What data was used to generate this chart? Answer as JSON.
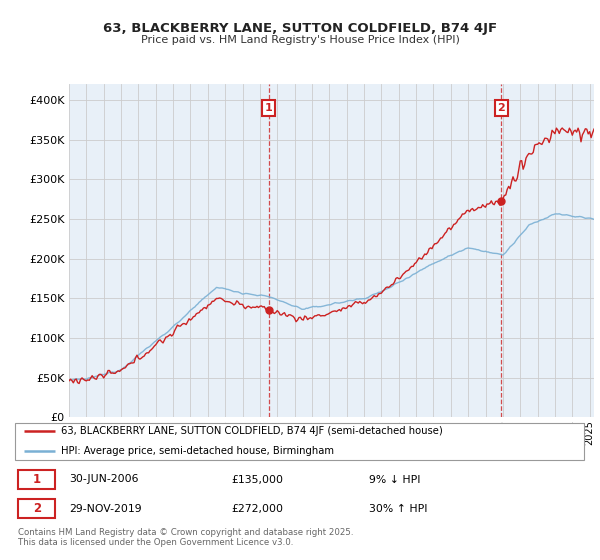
{
  "title1": "63, BLACKBERRY LANE, SUTTON COLDFIELD, B74 4JF",
  "title2": "Price paid vs. HM Land Registry's House Price Index (HPI)",
  "legend_line1": "63, BLACKBERRY LANE, SUTTON COLDFIELD, B74 4JF (semi-detached house)",
  "legend_line2": "HPI: Average price, semi-detached house, Birmingham",
  "sale1_date": "30-JUN-2006",
  "sale1_price": 135000,
  "sale1_pct": "9% ↓ HPI",
  "sale2_date": "29-NOV-2019",
  "sale2_price": 272000,
  "sale2_pct": "30% ↑ HPI",
  "copyright": "Contains HM Land Registry data © Crown copyright and database right 2025.\nThis data is licensed under the Open Government Licence v3.0.",
  "red_color": "#cc2222",
  "blue_color": "#7ab0d4",
  "grid_color": "#cccccc",
  "chart_bg": "#e8f0f8",
  "ylim_min": 0,
  "ylim_max": 420000,
  "sale1_year": 2006.5,
  "sale2_year": 2019.92
}
